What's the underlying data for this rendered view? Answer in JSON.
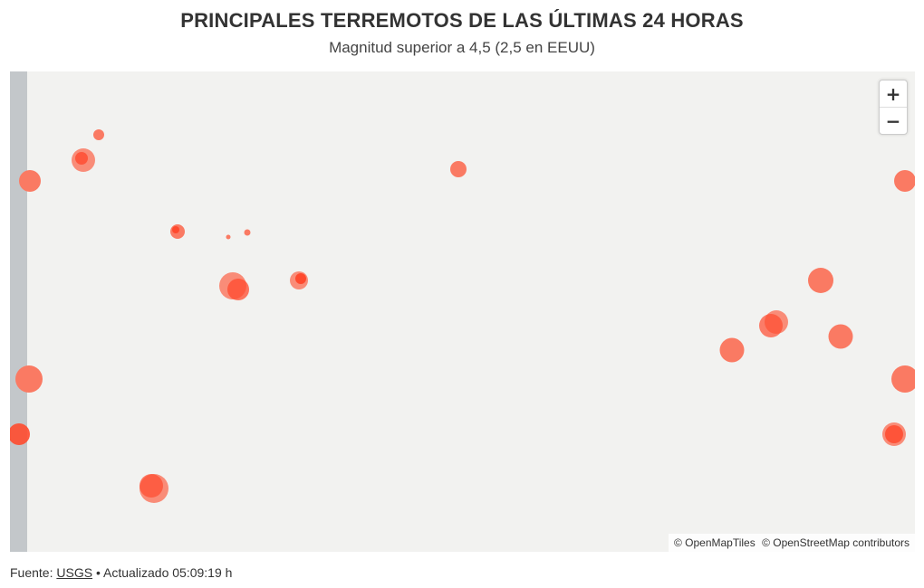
{
  "header": {
    "title": "PRINCIPALES TERREMOTOS DE LAS ÚLTIMAS 24 HORAS",
    "subtitle": "Magnitud superior a 4,5 (2,5 en EEUU)"
  },
  "map": {
    "zoom_in_label": "+",
    "zoom_out_label": "−",
    "attribution": {
      "openmaptiles": "© OpenMapTiles",
      "osm": "© OpenStreetMap contributors"
    },
    "colors": {
      "background": "#f2f2f0",
      "land": "#c3c7ca",
      "quake_fill": "#fa7a63",
      "quake_fill_recent": "#ff4a2e"
    }
  },
  "footer": {
    "source_prefix": "Fuente:",
    "source_link": "USGS",
    "separator": "•",
    "updated": "Actualizado 05:09:19 h"
  }
}
